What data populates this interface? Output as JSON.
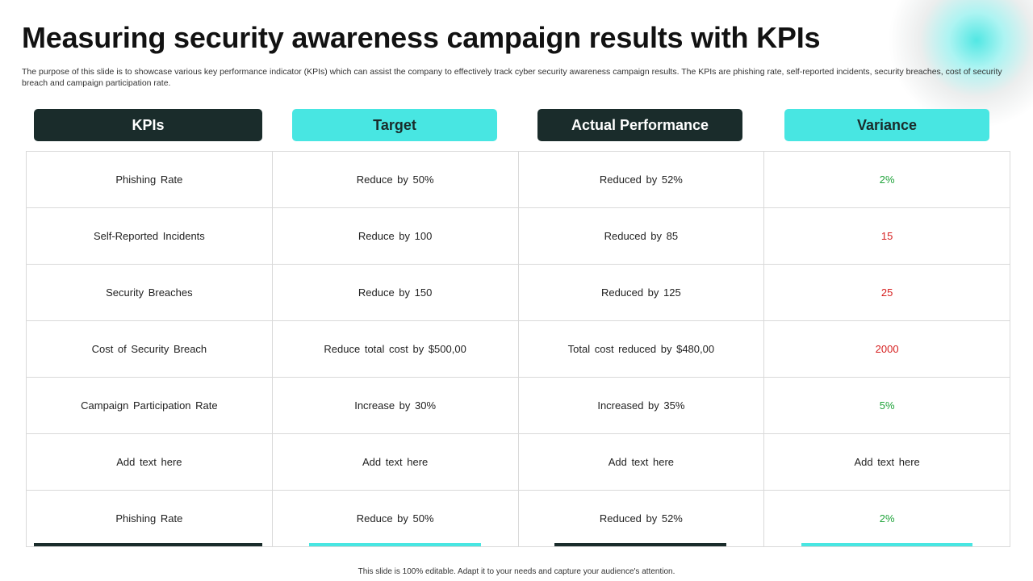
{
  "title": "Measuring security awareness campaign results with KPIs",
  "subtitle": "The purpose of this slide is to showcase various key performance indicator (KPIs) which can assist the company to effectively  track cyber security awareness campaign results. The KPIs are phishing rate, self-reported incidents, security breaches, cost of security breach and campaign participation rate.",
  "headers": {
    "kpis": "KPIs",
    "target": "Target",
    "actual": "Actual Performance",
    "variance": "Variance"
  },
  "rows": [
    {
      "kpi": "Phishing Rate",
      "target": "Reduce by 50%",
      "actual": "Reduced by 52%",
      "variance": "2%",
      "variance_status": "positive"
    },
    {
      "kpi": "Self-Reported Incidents",
      "target": "Reduce by 100",
      "actual": "Reduced by 85",
      "variance": "15",
      "variance_status": "negative"
    },
    {
      "kpi": "Security Breaches",
      "target": "Reduce by 150",
      "actual": "Reduced by 125",
      "variance": "25",
      "variance_status": "negative"
    },
    {
      "kpi": "Cost of Security Breach",
      "target": "Reduce total cost by $500,00",
      "actual": "Total cost reduced by $480,00",
      "variance": "2000",
      "variance_status": "negative"
    },
    {
      "kpi": "Campaign Participation Rate",
      "target": "Increase by 30%",
      "actual": "Increased by 35%",
      "variance": "5%",
      "variance_status": "positive"
    },
    {
      "kpi": "Add text here",
      "target": "Add text here",
      "actual": "Add text here",
      "variance": "Add text here",
      "variance_status": "neutral"
    },
    {
      "kpi": "Phishing Rate",
      "target": "Reduce by 50%",
      "actual": "Reduced by 52%",
      "variance": "2%",
      "variance_status": "positive"
    }
  ],
  "footer": "This slide is 100% editable. Adapt it to your needs and capture your audience's attention.",
  "colors": {
    "dark": "#1a2c2b",
    "accent": "#48e6e2",
    "positive": "#1fa33a",
    "negative": "#d61f1f"
  }
}
